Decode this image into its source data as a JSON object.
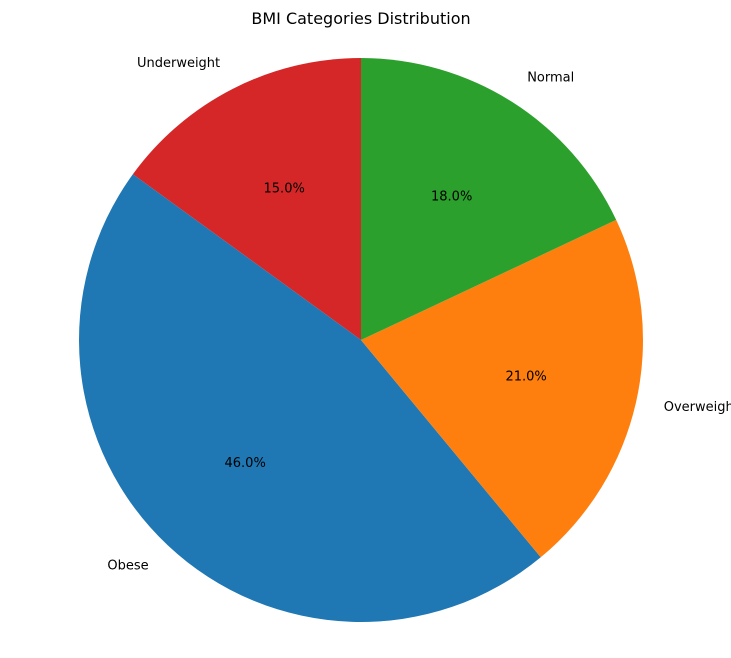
{
  "chart_data": {
    "type": "pie",
    "title": "BMI Categories Distribution",
    "labels": [
      "Underweight",
      "Obese",
      "Overweight",
      "Normal"
    ],
    "values": [
      15.0,
      46.0,
      21.0,
      18.0
    ],
    "percent_labels": [
      "15.0%",
      "46.0%",
      "21.0%",
      "18.0%"
    ],
    "colors": [
      "#d62728",
      "#1f77b4",
      "#ff7f0e",
      "#2ca02c"
    ],
    "start_angle_deg": 90,
    "direction": "counterclockwise"
  }
}
